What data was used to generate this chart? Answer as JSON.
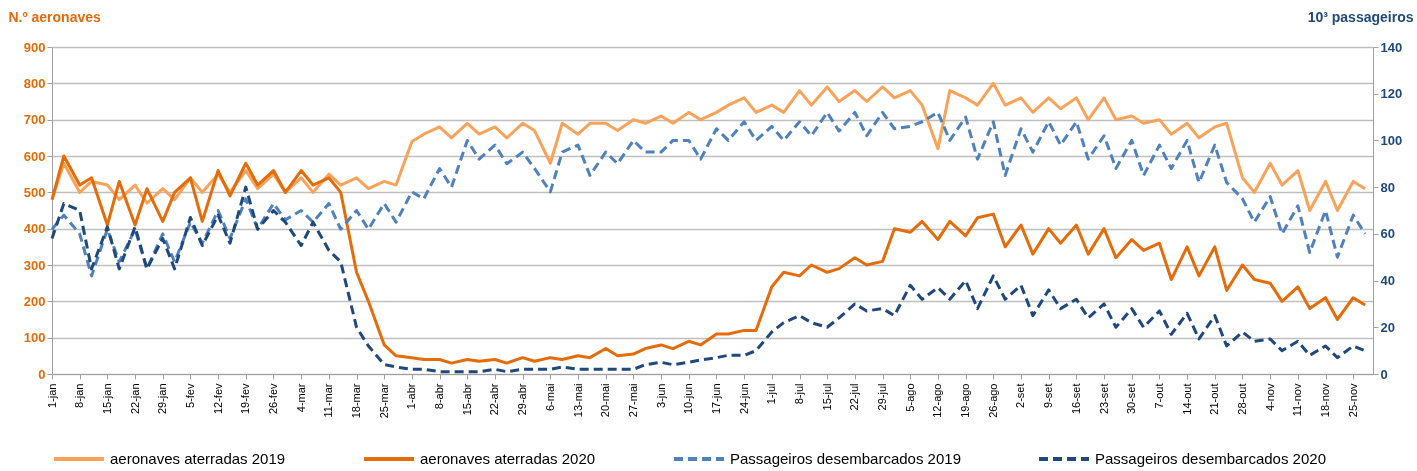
{
  "chart_data": {
    "type": "line",
    "ylabel": "N.º aeronaves",
    "y2label": "10³ passageiros",
    "x": [
      "--01-01",
      "--01-04",
      "--01-08",
      "--01-11",
      "--01-15",
      "--01-18",
      "--01-22",
      "--01-25",
      "--01-29",
      "--02-01",
      "--02-05",
      "--02-08",
      "--02-12",
      "--02-15",
      "--02-19",
      "--02-22",
      "--02-26",
      "--02-29",
      "--03-04",
      "--03-07",
      "--03-11",
      "--03-14",
      "--03-18",
      "--03-21",
      "--03-25",
      "--03-28",
      "--04-01",
      "--04-04",
      "--04-08",
      "--04-11",
      "--04-15",
      "--04-18",
      "--04-22",
      "--04-25",
      "--04-29",
      "--05-02",
      "--05-06",
      "--05-09",
      "--05-13",
      "--05-16",
      "--05-20",
      "--05-23",
      "--05-27",
      "--05-30",
      "--06-03",
      "--06-06",
      "--06-10",
      "--06-13",
      "--06-17",
      "--06-20",
      "--06-24",
      "--06-27",
      "--07-01",
      "--07-04",
      "--07-08",
      "--07-11",
      "--07-15",
      "--07-18",
      "--07-22",
      "--07-25",
      "--07-29",
      "--08-01",
      "--08-05",
      "--08-08",
      "--08-12",
      "--08-15",
      "--08-19",
      "--08-22",
      "--08-26",
      "--08-29",
      "--09-02",
      "--09-05",
      "--09-09",
      "--09-12",
      "--09-16",
      "--09-19",
      "--09-23",
      "--09-26",
      "--09-30",
      "--10-03",
      "--10-07",
      "--10-10",
      "--10-14",
      "--10-17",
      "--10-21",
      "--10-24",
      "--10-28",
      "--10-31",
      "--11-04",
      "--11-07",
      "--11-11",
      "--11-14",
      "--11-18",
      "--11-21",
      "--11-25",
      "--11-28"
    ],
    "xlim": [
      "--01-01",
      "--11-30"
    ],
    "xticks": [
      {
        "value": "--01-01",
        "label": "1-jan"
      },
      {
        "value": "--01-08",
        "label": "8-jan"
      },
      {
        "value": "--01-15",
        "label": "15-jan"
      },
      {
        "value": "--01-22",
        "label": "22-jan"
      },
      {
        "value": "--01-29",
        "label": "29-jan"
      },
      {
        "value": "--02-05",
        "label": "5-fev"
      },
      {
        "value": "--02-12",
        "label": "12-fev"
      },
      {
        "value": "--02-19",
        "label": "19-fev"
      },
      {
        "value": "--02-26",
        "label": "26-fev"
      },
      {
        "value": "--03-04",
        "label": "4-mar"
      },
      {
        "value": "--03-11",
        "label": "11-mar"
      },
      {
        "value": "--03-18",
        "label": "18-mar"
      },
      {
        "value": "--03-25",
        "label": "25-mar"
      },
      {
        "value": "--04-01",
        "label": "1-abr"
      },
      {
        "value": "--04-08",
        "label": "8-abr"
      },
      {
        "value": "--04-15",
        "label": "15-abr"
      },
      {
        "value": "--04-22",
        "label": "22-abr"
      },
      {
        "value": "--04-29",
        "label": "29-abr"
      },
      {
        "value": "--05-06",
        "label": "6-mai"
      },
      {
        "value": "--05-13",
        "label": "13-mai"
      },
      {
        "value": "--05-20",
        "label": "20-mai"
      },
      {
        "value": "--05-27",
        "label": "27-mai"
      },
      {
        "value": "--06-03",
        "label": "3-jun"
      },
      {
        "value": "--06-10",
        "label": "10-jun"
      },
      {
        "value": "--06-17",
        "label": "17-jun"
      },
      {
        "value": "--06-24",
        "label": "24-jun"
      },
      {
        "value": "--07-01",
        "label": "1-jul"
      },
      {
        "value": "--07-08",
        "label": "8-jul"
      },
      {
        "value": "--07-15",
        "label": "15-jul"
      },
      {
        "value": "--07-22",
        "label": "22-jul"
      },
      {
        "value": "--07-29",
        "label": "29-jul"
      },
      {
        "value": "--08-05",
        "label": "5-ago"
      },
      {
        "value": "--08-12",
        "label": "12-ago"
      },
      {
        "value": "--08-19",
        "label": "19-ago"
      },
      {
        "value": "--08-26",
        "label": "26-ago"
      },
      {
        "value": "--09-02",
        "label": "2-set"
      },
      {
        "value": "--09-09",
        "label": "9-set"
      },
      {
        "value": "--09-16",
        "label": "16-set"
      },
      {
        "value": "--09-23",
        "label": "23-set"
      },
      {
        "value": "--09-30",
        "label": "30-set"
      },
      {
        "value": "--10-07",
        "label": "7-out"
      },
      {
        "value": "--10-14",
        "label": "14-out"
      },
      {
        "value": "--10-21",
        "label": "21-out"
      },
      {
        "value": "--10-28",
        "label": "28-out"
      },
      {
        "value": "--11-04",
        "label": "4-nov"
      },
      {
        "value": "--11-11",
        "label": "11-nov"
      },
      {
        "value": "--11-18",
        "label": "18-nov"
      },
      {
        "value": "--11-25",
        "label": "25-nov"
      }
    ],
    "ylim": [
      0,
      900
    ],
    "yticks": [
      0,
      100,
      200,
      300,
      400,
      500,
      600,
      700,
      800,
      900
    ],
    "y2lim": [
      0,
      140
    ],
    "y2ticks": [
      0,
      20,
      40,
      60,
      80,
      100,
      120,
      140
    ],
    "grid": "y",
    "legend": "bottom",
    "series": [
      {
        "name": "aeronaves aterradas 2019",
        "color": "#f9a35a",
        "line_style": "solid",
        "values": [
          480,
          580,
          500,
          530,
          520,
          480,
          520,
          470,
          510,
          480,
          540,
          500,
          550,
          500,
          560,
          510,
          550,
          500,
          540,
          500,
          550,
          520,
          540,
          510,
          530,
          520,
          640,
          660,
          680,
          650,
          690,
          660,
          680,
          650,
          690,
          670,
          580,
          690,
          660,
          690,
          690,
          670,
          700,
          690,
          710,
          690,
          720,
          700,
          720,
          740,
          760,
          720,
          740,
          720,
          780,
          740,
          790,
          750,
          780,
          750,
          790,
          760,
          780,
          740,
          620,
          780,
          760,
          740,
          800,
          740,
          760,
          720,
          760,
          730,
          760,
          700,
          760,
          700,
          710,
          690,
          700,
          660,
          690,
          650,
          680,
          690,
          540,
          500,
          580,
          520,
          560,
          450,
          530,
          450,
          530,
          510
        ]
      },
      {
        "name": "aeronaves aterradas 2020",
        "color": "#e46c0a",
        "line_style": "solid",
        "values": [
          480,
          600,
          520,
          540,
          410,
          530,
          410,
          510,
          420,
          500,
          540,
          420,
          560,
          490,
          580,
          520,
          560,
          500,
          560,
          520,
          540,
          500,
          280,
          200,
          80,
          50,
          45,
          40,
          40,
          30,
          40,
          35,
          40,
          30,
          45,
          35,
          45,
          40,
          50,
          45,
          70,
          50,
          55,
          70,
          80,
          70,
          90,
          80,
          110,
          110,
          120,
          120,
          240,
          280,
          270,
          300,
          280,
          290,
          320,
          300,
          310,
          400,
          390,
          420,
          370,
          420,
          380,
          430,
          440,
          350,
          410,
          330,
          400,
          360,
          410,
          330,
          400,
          320,
          370,
          340,
          360,
          260,
          350,
          270,
          350,
          230,
          300,
          260,
          250,
          200,
          240,
          180,
          210,
          150,
          210,
          190
        ]
      },
      {
        "name": "Passageiros desembarcados 2019",
        "color": "#4f81bd",
        "line_style": "dashed",
        "axis": "y2",
        "values": [
          62,
          68,
          60,
          42,
          62,
          48,
          62,
          45,
          60,
          48,
          65,
          56,
          70,
          58,
          75,
          62,
          73,
          66,
          70,
          65,
          73,
          62,
          70,
          62,
          73,
          65,
          78,
          75,
          88,
          80,
          100,
          92,
          98,
          90,
          95,
          88,
          78,
          95,
          98,
          85,
          95,
          90,
          100,
          95,
          95,
          100,
          100,
          92,
          105,
          100,
          108,
          100,
          106,
          100,
          108,
          102,
          112,
          104,
          112,
          102,
          112,
          105,
          106,
          108,
          112,
          100,
          110,
          92,
          108,
          85,
          105,
          95,
          108,
          98,
          108,
          92,
          102,
          88,
          100,
          85,
          98,
          88,
          100,
          82,
          98,
          82,
          75,
          65,
          76,
          60,
          72,
          52,
          70,
          50,
          68,
          60
        ]
      },
      {
        "name": "Passageiros desembarcados 2020",
        "color": "#1f497d",
        "line_style": "dashed",
        "axis": "y2",
        "values": [
          58,
          73,
          70,
          45,
          63,
          45,
          63,
          45,
          58,
          45,
          67,
          55,
          68,
          56,
          80,
          62,
          70,
          65,
          55,
          65,
          53,
          48,
          20,
          12,
          4,
          3,
          2,
          2,
          1,
          1,
          1,
          1,
          2,
          1,
          2,
          2,
          2,
          3,
          2,
          2,
          2,
          2,
          2,
          4,
          5,
          4,
          5,
          6,
          7,
          8,
          8,
          10,
          18,
          22,
          25,
          22,
          20,
          24,
          30,
          27,
          28,
          25,
          38,
          32,
          37,
          32,
          40,
          28,
          42,
          32,
          38,
          25,
          36,
          28,
          32,
          24,
          30,
          20,
          28,
          20,
          27,
          17,
          26,
          15,
          25,
          12,
          18,
          14,
          15,
          10,
          14,
          8,
          12,
          7,
          12,
          10
        ]
      }
    ]
  }
}
